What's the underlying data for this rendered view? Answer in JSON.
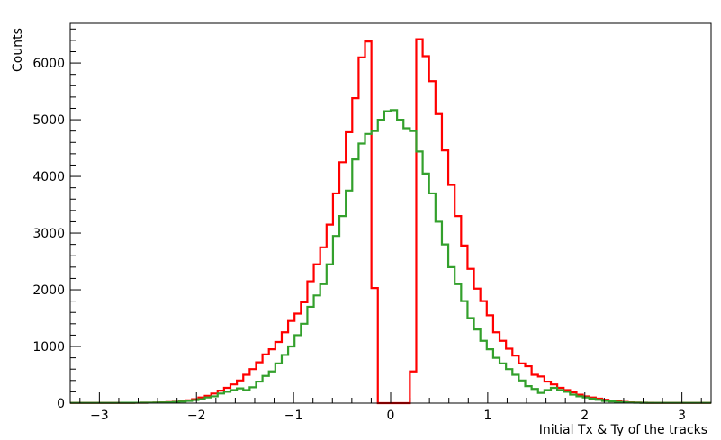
{
  "chart_data": {
    "type": "histogram",
    "title": "",
    "xlabel": "Initial Tx & Ty of the tracks",
    "ylabel": "Counts",
    "xlim": [
      -3.3,
      3.3
    ],
    "ylim": [
      0,
      6700
    ],
    "grid": false,
    "x_ticks": [
      -3,
      -2,
      -1,
      0,
      1,
      2,
      3
    ],
    "x_tick_labels": [
      "−3",
      "−2",
      "−1",
      "0",
      "1",
      "2",
      "3"
    ],
    "y_ticks": [
      0,
      1000,
      2000,
      3000,
      4000,
      5000,
      6000
    ],
    "y_tick_labels": [
      "0",
      "1000",
      "2000",
      "3000",
      "4000",
      "5000",
      "6000"
    ],
    "bin_start": -3.3,
    "bin_width": 0.066,
    "series": [
      {
        "color": "#ff0000",
        "values": [
          5,
          5,
          5,
          5,
          5,
          5,
          5,
          5,
          6,
          6,
          7,
          8,
          9,
          10,
          14,
          18,
          25,
          35,
          50,
          70,
          100,
          130,
          170,
          220,
          270,
          330,
          400,
          500,
          600,
          720,
          860,
          950,
          1080,
          1250,
          1450,
          1580,
          1780,
          2150,
          2450,
          2750,
          3150,
          3700,
          4250,
          4780,
          5380,
          6100,
          6380,
          2030,
          0,
          0,
          0,
          0,
          0,
          560,
          6420,
          6120,
          5680,
          5100,
          4460,
          3850,
          3300,
          2780,
          2370,
          2020,
          1800,
          1550,
          1250,
          1100,
          960,
          840,
          700,
          650,
          500,
          470,
          380,
          330,
          270,
          230,
          190,
          150,
          120,
          100,
          80,
          60,
          40,
          30,
          20,
          15,
          10,
          8,
          6,
          5,
          5,
          5,
          5,
          5,
          5,
          5,
          5,
          5
        ]
      },
      {
        "color": "#33a02c",
        "values": [
          5,
          5,
          5,
          5,
          5,
          5,
          5,
          5,
          6,
          6,
          7,
          8,
          9,
          10,
          12,
          15,
          20,
          28,
          40,
          55,
          70,
          100,
          120,
          170,
          200,
          230,
          260,
          230,
          280,
          380,
          480,
          560,
          700,
          850,
          1000,
          1200,
          1400,
          1700,
          1900,
          2100,
          2450,
          2950,
          3300,
          3750,
          4300,
          4580,
          4750,
          4800,
          5000,
          5150,
          5170,
          5000,
          4850,
          4800,
          4440,
          4050,
          3700,
          3200,
          2800,
          2400,
          2100,
          1800,
          1500,
          1300,
          1100,
          950,
          800,
          700,
          600,
          500,
          400,
          300,
          250,
          180,
          230,
          270,
          230,
          200,
          150,
          120,
          100,
          80,
          60,
          40,
          30,
          20,
          15,
          10,
          8,
          6,
          5,
          5,
          5,
          5,
          5,
          5,
          5,
          5,
          5,
          5
        ]
      }
    ]
  }
}
